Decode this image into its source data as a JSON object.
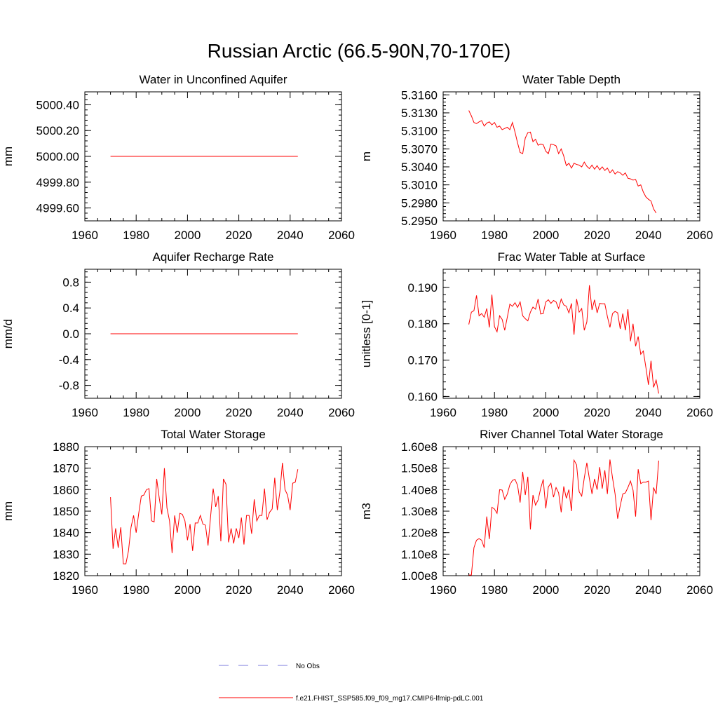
{
  "figure_title": "Russian Arctic (66.5-90N,70-170E)",
  "legend": {
    "entries": [
      {
        "label": "No Obs",
        "color": "#7b7bdc",
        "dash": true
      },
      {
        "label": "f.e21.FHIST_SSP585.f09_f09_mg17.CMIP6-lfmip-pdLC.001",
        "color": "#ff0000",
        "dash": false
      }
    ]
  },
  "chart_data": [
    {
      "type": "line",
      "title": "Water in Unconfined Aquifer",
      "ylabel": "mm",
      "xlim": [
        1960,
        2060
      ],
      "ylim": [
        4999.5,
        5000.5
      ],
      "xticks": [
        1960,
        1980,
        2000,
        2020,
        2040,
        2060
      ],
      "yticks": [
        4999.6,
        4999.8,
        5000.0,
        5000.2,
        5000.4
      ],
      "ytick_labels": [
        "4999.60",
        "4999.80",
        "5000.00",
        "5000.20",
        "5000.40"
      ],
      "series": [
        {
          "x": [
            1970,
            2043
          ],
          "values": [
            5000.0,
            5000.0
          ],
          "color": "#ff0000"
        }
      ]
    },
    {
      "type": "line",
      "title": "Water Table Depth",
      "ylabel": "m",
      "xlim": [
        1960,
        2060
      ],
      "ylim": [
        5.295,
        5.3165
      ],
      "xticks": [
        1960,
        1980,
        2000,
        2020,
        2040,
        2060
      ],
      "yticks": [
        5.295,
        5.298,
        5.301,
        5.304,
        5.307,
        5.31,
        5.313,
        5.316
      ],
      "ytick_labels": [
        "5.2950",
        "5.2980",
        "5.3010",
        "5.3040",
        "5.3070",
        "5.3100",
        "5.3130",
        "5.3160"
      ],
      "series": [
        {
          "x0": 1970,
          "dx": 1,
          "color": "#ff0000",
          "values": [
            5.3134,
            5.3125,
            5.3114,
            5.3112,
            5.3115,
            5.3117,
            5.3108,
            5.3113,
            5.3115,
            5.311,
            5.3114,
            5.3106,
            5.3108,
            5.3102,
            5.3104,
            5.3106,
            5.3102,
            5.3114,
            5.3098,
            5.308,
            5.3064,
            5.3062,
            5.3088,
            5.3097,
            5.3098,
            5.3082,
            5.3086,
            5.3076,
            5.3078,
            5.3077,
            5.3066,
            5.3062,
            5.3078,
            5.3077,
            5.3075,
            5.3062,
            5.307,
            5.3058,
            5.3042,
            5.3046,
            5.3038,
            5.3046,
            5.3044,
            5.3043,
            5.304,
            5.3048,
            5.3041,
            5.3037,
            5.3043,
            5.3036,
            5.3042,
            5.3035,
            5.304,
            5.3034,
            5.3038,
            5.303,
            5.3035,
            5.3028,
            5.3032,
            5.303,
            5.3026,
            5.303,
            5.3021,
            5.302,
            5.3018,
            5.3019,
            5.3008,
            5.301,
            5.2998,
            5.299,
            5.2986,
            5.2983,
            5.297,
            5.2963
          ]
        }
      ]
    },
    {
      "type": "line",
      "title": "Aquifer Recharge Rate",
      "ylabel": "mm/d",
      "xlim": [
        1960,
        2060
      ],
      "ylim": [
        -1.0,
        1.0
      ],
      "xticks": [
        1960,
        1980,
        2000,
        2020,
        2040,
        2060
      ],
      "yticks": [
        -0.8,
        -0.4,
        0.0,
        0.4,
        0.8
      ],
      "ytick_labels": [
        "-0.8",
        "-0.4",
        "0.0",
        "0.4",
        "0.8"
      ],
      "series": [
        {
          "x": [
            1970,
            2043
          ],
          "values": [
            0.0,
            0.0
          ],
          "color": "#ff0000"
        }
      ]
    },
    {
      "type": "line",
      "title": "Frac Water Table at Surface",
      "ylabel": "unitless [0-1]",
      "xlim": [
        1960,
        2060
      ],
      "ylim": [
        0.1595,
        0.195
      ],
      "xticks": [
        1960,
        1980,
        2000,
        2020,
        2040,
        2060
      ],
      "yticks": [
        0.16,
        0.17,
        0.18,
        0.19
      ],
      "ytick_labels": [
        "0.160",
        "0.170",
        "0.180",
        "0.190"
      ],
      "series": [
        {
          "x0": 1970,
          "dx": 1,
          "color": "#ff0000",
          "values": [
            0.1798,
            0.1832,
            0.1836,
            0.1878,
            0.1822,
            0.1828,
            0.1818,
            0.1842,
            0.179,
            0.188,
            0.1792,
            0.1778,
            0.1822,
            0.1812,
            0.1782,
            0.1818,
            0.1854,
            0.1848,
            0.1858,
            0.1845,
            0.186,
            0.1822,
            0.1814,
            0.1808,
            0.1832,
            0.1846,
            0.184,
            0.1868,
            0.1827,
            0.1828,
            0.186,
            0.1866,
            0.1856,
            0.1864,
            0.186,
            0.1842,
            0.1868,
            0.1852,
            0.1848,
            0.183,
            0.1856,
            0.177,
            0.1868,
            0.1832,
            0.1842,
            0.1782,
            0.1805,
            0.1906,
            0.1838,
            0.1866,
            0.183,
            0.1856,
            0.1855,
            0.1855,
            0.182,
            0.179,
            0.1828,
            0.1834,
            0.183,
            0.1786,
            0.1828,
            0.1782,
            0.184,
            0.1752,
            0.18,
            0.1738,
            0.1765,
            0.1716,
            0.1725,
            0.168,
            0.1632,
            0.1698,
            0.1625,
            0.1645,
            0.1608
          ]
        }
      ]
    },
    {
      "type": "line",
      "title": "Total Water Storage",
      "ylabel": "mm",
      "xlim": [
        1960,
        2060
      ],
      "ylim": [
        1820,
        1880
      ],
      "xticks": [
        1960,
        1980,
        2000,
        2020,
        2040,
        2060
      ],
      "yticks": [
        1820,
        1830,
        1840,
        1850,
        1860,
        1870,
        1880
      ],
      "ytick_labels": [
        "1820",
        "1830",
        "1840",
        "1850",
        "1860",
        "1870",
        "1880"
      ],
      "series": [
        {
          "x0": 1970,
          "dx": 1,
          "color": "#ff0000",
          "values": [
            1856.5,
            1832.5,
            1842.0,
            1833.0,
            1842.5,
            1825.5,
            1825.5,
            1831.5,
            1842.5,
            1848.0,
            1840.0,
            1849.0,
            1857.0,
            1857.5,
            1860.0,
            1860.5,
            1845.5,
            1845.0,
            1865.0,
            1856.0,
            1848.5,
            1870.0,
            1851.5,
            1845.5,
            1830.5,
            1848.0,
            1840.0,
            1849.0,
            1848.5,
            1845.5,
            1836.5,
            1844.0,
            1831.5,
            1844.5,
            1844.5,
            1848.0,
            1844.0,
            1843.5,
            1834.0,
            1847.5,
            1860.5,
            1852.0,
            1857.0,
            1836.0,
            1865.0,
            1862.5,
            1835.5,
            1842.0,
            1835.0,
            1842.0,
            1837.5,
            1847.0,
            1834.5,
            1848.0,
            1848.0,
            1839.5,
            1855.5,
            1845.5,
            1848.0,
            1848.0,
            1860.5,
            1846.0,
            1849.5,
            1851.0,
            1865.5,
            1850.5,
            1859.0,
            1872.5,
            1860.0,
            1857.5,
            1850.5,
            1863.0,
            1863.5,
            1869.5
          ]
        }
      ]
    },
    {
      "type": "line",
      "title": "River Channel Total Water Storage",
      "ylabel": "m3",
      "xlim": [
        1960,
        2060
      ],
      "ylim": [
        100000000.0,
        160000000.0
      ],
      "xticks": [
        1960,
        1980,
        2000,
        2020,
        2040,
        2060
      ],
      "yticks": [
        100000000.0,
        110000000.0,
        120000000.0,
        130000000.0,
        140000000.0,
        150000000.0,
        160000000.0
      ],
      "ytick_labels": [
        "1.00e8",
        "1.10e8",
        "1.20e8",
        "1.30e8",
        "1.40e8",
        "1.50e8",
        "1.60e8"
      ],
      "series": [
        {
          "x0": 1970,
          "dx": 1,
          "color": "#ff0000",
          "values": [
            100300000.0,
            100300000.0,
            113000000.0,
            116500000.0,
            117200000.0,
            116500000.0,
            113000000.0,
            127500000.0,
            117000000.0,
            131800000.0,
            131000000.0,
            129000000.0,
            140000000.0,
            139800000.0,
            135500000.0,
            138000000.0,
            142300000.0,
            144300000.0,
            144800000.0,
            142000000.0,
            134000000.0,
            148300000.0,
            137500000.0,
            146000000.0,
            121500000.0,
            137500000.0,
            132800000.0,
            135200000.0,
            140500000.0,
            144800000.0,
            131300000.0,
            141300000.0,
            143000000.0,
            136500000.0,
            141000000.0,
            138500000.0,
            129500000.0,
            141500000.0,
            136000000.0,
            140000000.0,
            130000000.0,
            153700000.0,
            151500000.0,
            139000000.0,
            137000000.0,
            145500000.0,
            152500000.0,
            145000000.0,
            138000000.0,
            145000000.0,
            140000000.0,
            150500000.0,
            140500000.0,
            149000000.0,
            138000000.0,
            154000000.0,
            145500000.0,
            138000000.0,
            126500000.0,
            132500000.0,
            138000000.0,
            138500000.0,
            141000000.0,
            144000000.0,
            139800000.0,
            127500000.0,
            149500000.0,
            142800000.0,
            143500000.0,
            143500000.0,
            144000000.0,
            125800000.0,
            141000000.0,
            138000000.0,
            153500000.0
          ]
        }
      ]
    }
  ]
}
